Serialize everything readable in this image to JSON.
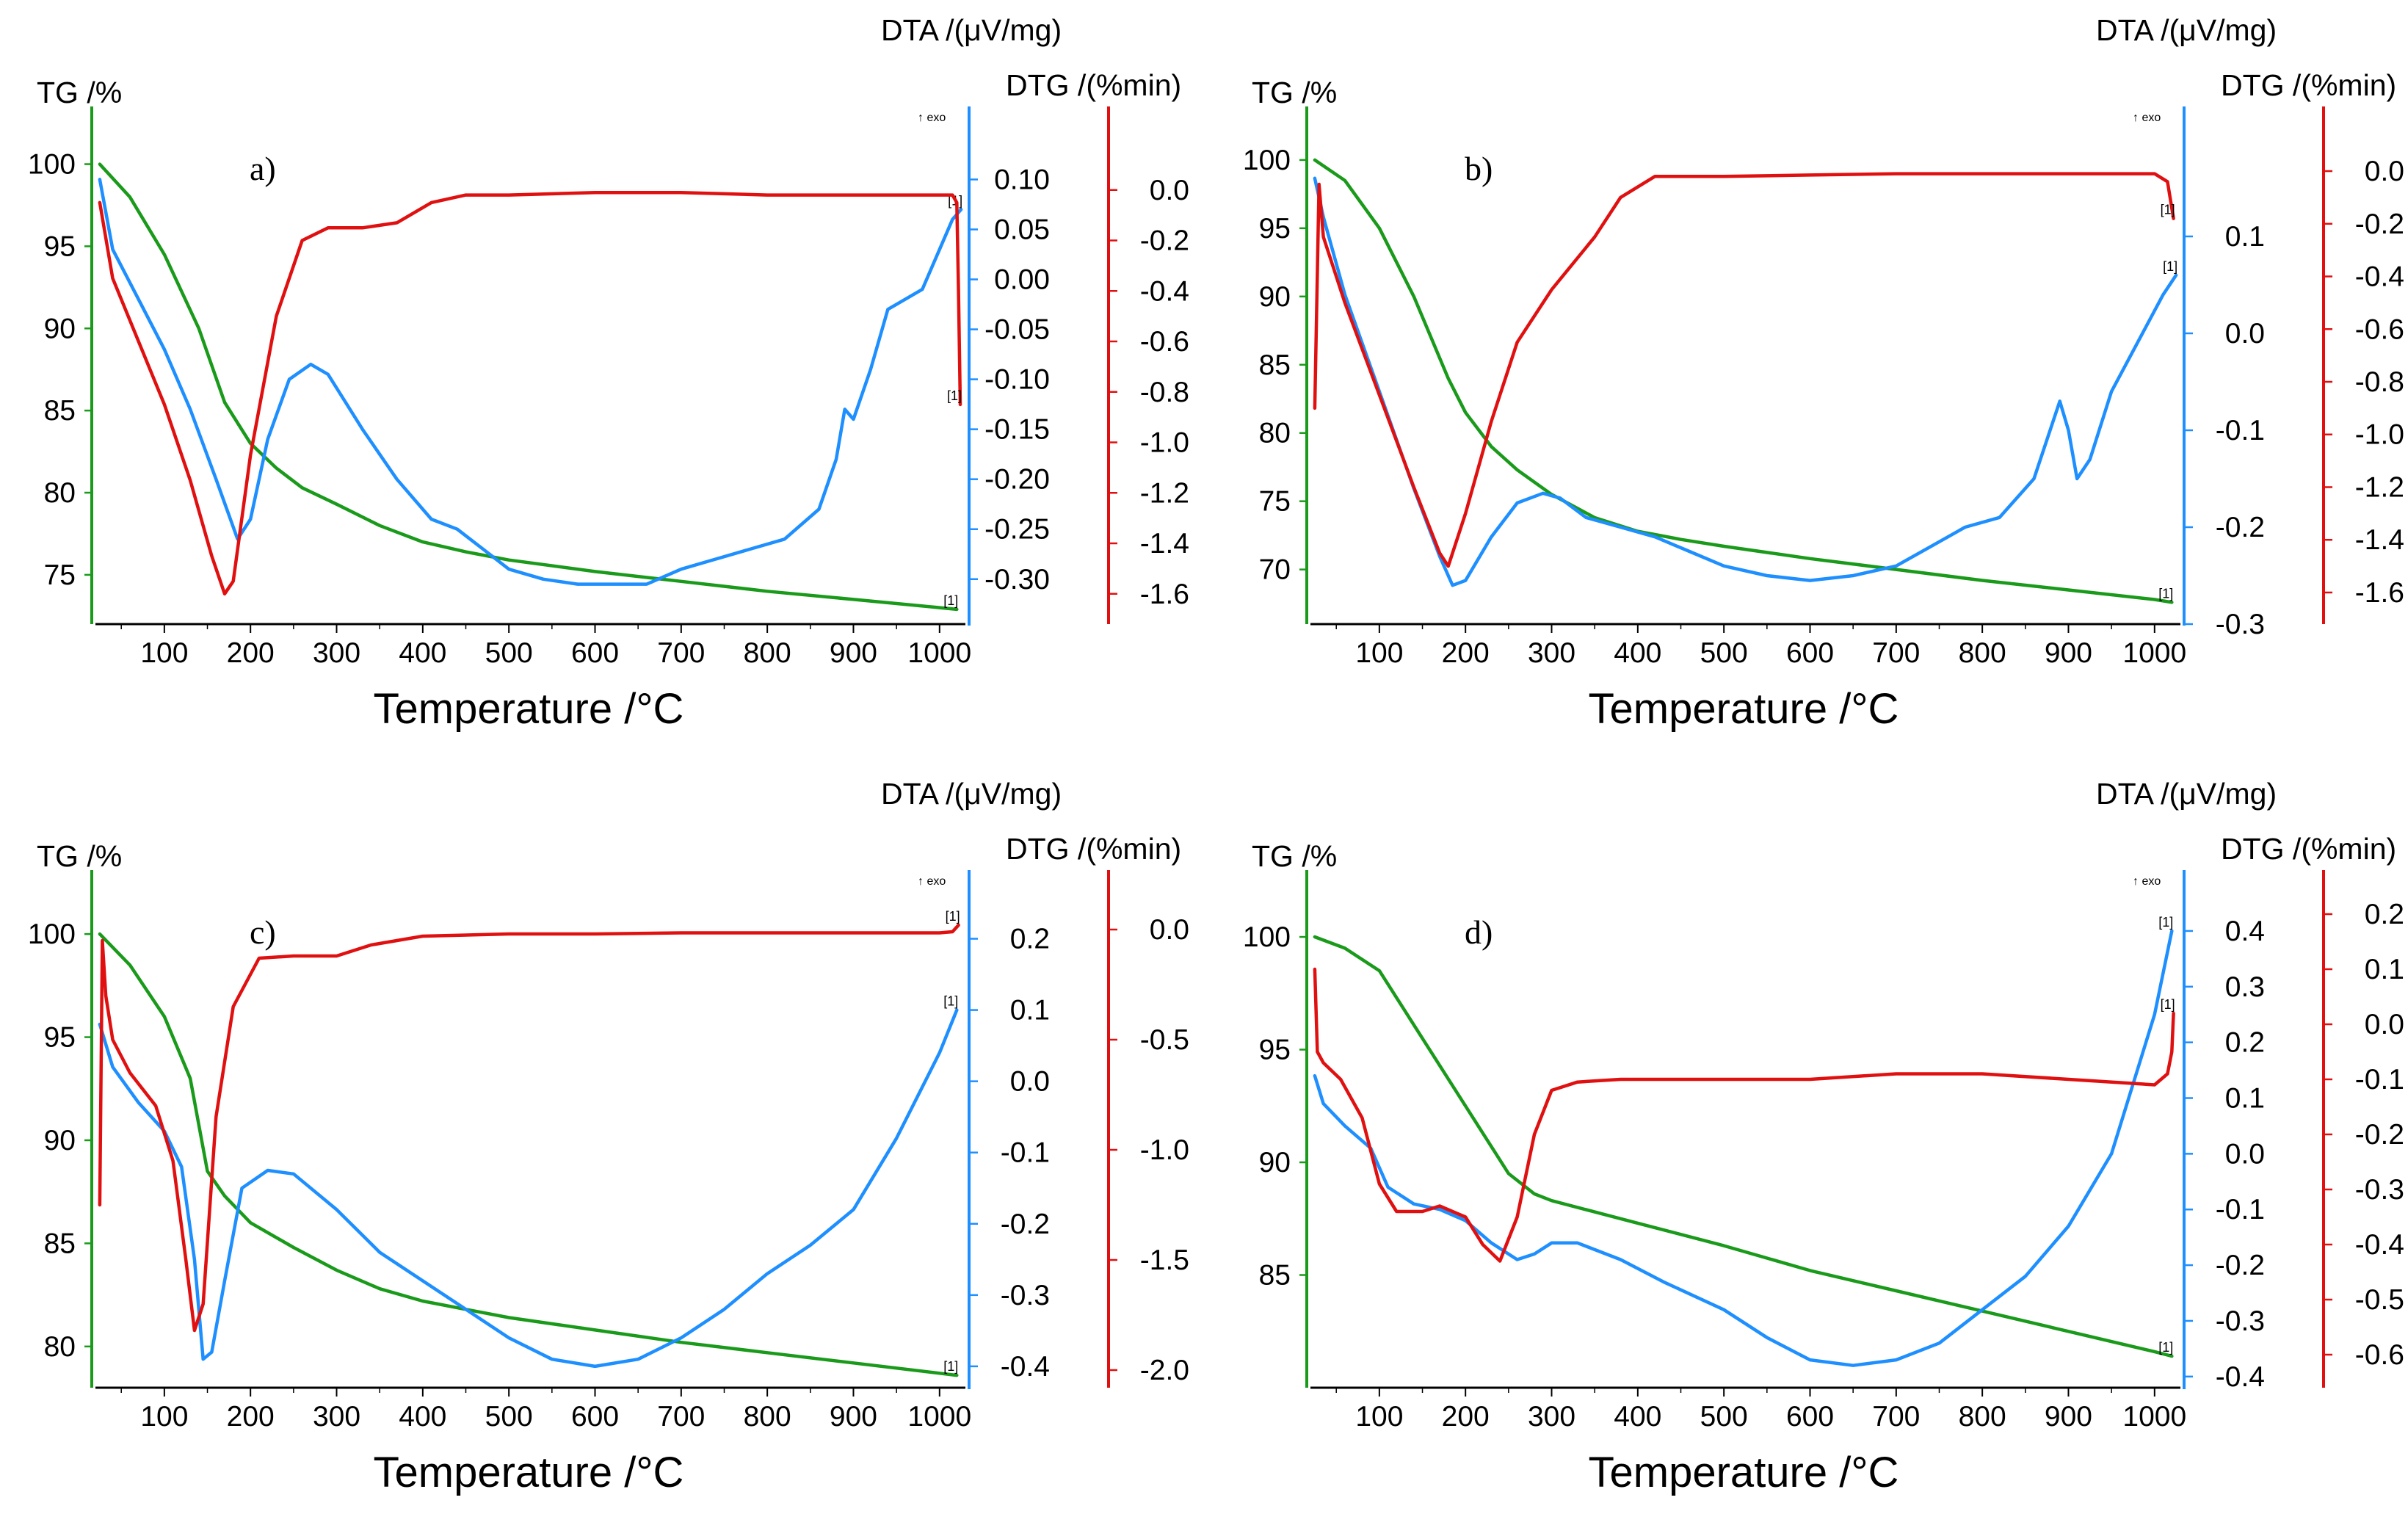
{
  "figure": {
    "legend_axis_titles": {
      "tg": "TG /%",
      "dta": "DTA /(μV/mg)",
      "dtg": "DTG /(%min)",
      "x": "Temperature /°C"
    },
    "exo_label": "↑ exo",
    "curve_marker": "[1]",
    "colors": {
      "tg": "#1a9a1a",
      "dta": "#1e8fff",
      "dtg": "#e01010",
      "tg_axis": "#1a9a1a",
      "dta_axis": "#1e8fff",
      "dtg_axis": "#e01010"
    }
  },
  "chart_data": [
    {
      "panel_label": "a)",
      "type": "line",
      "title": "",
      "xlabel": "Temperature /°C",
      "xlim": [
        20,
        1030
      ],
      "x_ticks": [
        100,
        200,
        300,
        400,
        500,
        600,
        700,
        800,
        900,
        1000
      ],
      "tg_label": "TG /%",
      "dta_label": "DTA /(μV/mg)",
      "dtg_label": "DTG /(%min)",
      "tg_lim": [
        72,
        101.5
      ],
      "tg_ticks": [
        75,
        80,
        85,
        90,
        95,
        100
      ],
      "dta_lim": [
        -0.345,
        0.14
      ],
      "dta_ticks": [
        -0.3,
        -0.25,
        -0.2,
        -0.15,
        -0.1,
        -0.05,
        0.0,
        0.05,
        0.1
      ],
      "dta_tick_labels": [
        "-0.30",
        "-0.25",
        "-0.20",
        "-0.15",
        "-0.10",
        "-0.05",
        "0.00",
        "0.05",
        "0.10"
      ],
      "dtg_lim": [
        -1.72,
        0.2
      ],
      "dtg_ticks": [
        -1.6,
        -1.4,
        -1.2,
        -1.0,
        -0.8,
        -0.6,
        -0.4,
        -0.2,
        0.0
      ],
      "dtg_tick_labels": [
        "-1.6",
        "-1.4",
        "-1.2",
        "-1.0",
        "-0.8",
        "-0.6",
        "-0.4",
        "-0.2",
        "0.0"
      ],
      "series": [
        {
          "name": "TG",
          "axis": "tg",
          "x": [
            25,
            60,
            100,
            140,
            170,
            200,
            230,
            260,
            300,
            350,
            400,
            450,
            500,
            600,
            700,
            800,
            900,
            1000,
            1020
          ],
          "y": [
            100,
            98,
            94.5,
            90,
            85.5,
            83,
            81.5,
            80.3,
            79.3,
            78,
            77,
            76.4,
            75.9,
            75.2,
            74.6,
            74,
            73.5,
            73,
            72.9
          ]
        },
        {
          "name": "DTA",
          "axis": "dta",
          "x": [
            25,
            40,
            70,
            100,
            130,
            160,
            185,
            200,
            220,
            245,
            270,
            290,
            330,
            370,
            410,
            440,
            470,
            500,
            540,
            580,
            620,
            660,
            700,
            740,
            780,
            820,
            860,
            880,
            890,
            900,
            920,
            940,
            960,
            980,
            1000,
            1015,
            1025
          ],
          "y": [
            0.1,
            0.03,
            -0.02,
            -0.07,
            -0.13,
            -0.2,
            -0.26,
            -0.24,
            -0.16,
            -0.1,
            -0.085,
            -0.095,
            -0.15,
            -0.2,
            -0.24,
            -0.25,
            -0.27,
            -0.29,
            -0.3,
            -0.305,
            -0.305,
            -0.305,
            -0.29,
            -0.28,
            -0.27,
            -0.26,
            -0.23,
            -0.18,
            -0.13,
            -0.14,
            -0.09,
            -0.03,
            -0.02,
            -0.01,
            0.03,
            0.06,
            0.07
          ]
        },
        {
          "name": "DTG",
          "axis": "dtg",
          "x": [
            25,
            40,
            70,
            100,
            130,
            155,
            170,
            180,
            200,
            230,
            260,
            290,
            330,
            370,
            410,
            450,
            500,
            600,
            700,
            800,
            900,
            1000,
            1015,
            1020,
            1022,
            1024
          ],
          "y": [
            -0.05,
            -0.35,
            -0.6,
            -0.85,
            -1.15,
            -1.45,
            -1.6,
            -1.55,
            -1.05,
            -0.5,
            -0.2,
            -0.15,
            -0.15,
            -0.13,
            -0.05,
            -0.02,
            -0.02,
            -0.01,
            -0.01,
            -0.02,
            -0.02,
            -0.02,
            -0.02,
            -0.05,
            -0.4,
            -0.85
          ]
        }
      ]
    },
    {
      "panel_label": "b)",
      "type": "line",
      "title": "",
      "xlabel": "Temperature /°C",
      "xlim": [
        20,
        1030
      ],
      "x_ticks": [
        100,
        200,
        300,
        400,
        500,
        600,
        700,
        800,
        900,
        1000
      ],
      "tg_label": "TG /%",
      "dta_label": "DTA /(μV/mg)",
      "dtg_label": "DTG /(%min)",
      "tg_lim": [
        66,
        101.5
      ],
      "tg_ticks": [
        70,
        75,
        80,
        85,
        90,
        95,
        100
      ],
      "dta_lim": [
        -0.3,
        0.2
      ],
      "dta_ticks": [
        -0.3,
        -0.2,
        -0.1,
        0.0,
        0.1
      ],
      "dta_tick_labels": [
        "-0.3",
        "-0.2",
        "-0.1",
        "0.0",
        "0.1"
      ],
      "dtg_lim": [
        -1.72,
        0.12
      ],
      "dtg_ticks": [
        -1.6,
        -1.4,
        -1.2,
        -1.0,
        -0.8,
        -0.6,
        -0.4,
        -0.2,
        0.0
      ],
      "dtg_tick_labels": [
        "-1.6",
        "-1.4",
        "-1.2",
        "-1.0",
        "-0.8",
        "-0.6",
        "-0.4",
        "-0.2",
        "0.0"
      ],
      "series": [
        {
          "name": "TG",
          "axis": "tg",
          "x": [
            25,
            60,
            100,
            140,
            180,
            200,
            230,
            260,
            300,
            350,
            400,
            450,
            500,
            600,
            700,
            800,
            900,
            1000,
            1020
          ],
          "y": [
            100,
            98.5,
            95,
            90,
            84,
            81.5,
            79,
            77.3,
            75.5,
            73.8,
            72.8,
            72.2,
            71.7,
            70.8,
            70,
            69.2,
            68.5,
            67.8,
            67.6
          ]
        },
        {
          "name": "DTA",
          "axis": "dta",
          "x": [
            25,
            35,
            60,
            100,
            140,
            170,
            185,
            200,
            230,
            260,
            290,
            310,
            340,
            380,
            420,
            460,
            500,
            550,
            600,
            650,
            700,
            740,
            780,
            820,
            860,
            875,
            890,
            900,
            910,
            925,
            950,
            980,
            1010,
            1025
          ],
          "y": [
            0.16,
            0.12,
            0.04,
            -0.06,
            -0.16,
            -0.23,
            -0.26,
            -0.255,
            -0.21,
            -0.175,
            -0.165,
            -0.17,
            -0.19,
            -0.2,
            -0.21,
            -0.225,
            -0.24,
            -0.25,
            -0.255,
            -0.25,
            -0.24,
            -0.22,
            -0.2,
            -0.19,
            -0.15,
            -0.11,
            -0.07,
            -0.1,
            -0.15,
            -0.13,
            -0.06,
            -0.01,
            0.04,
            0.06
          ]
        },
        {
          "name": "DTG",
          "axis": "dtg",
          "x": [
            25,
            30,
            35,
            60,
            100,
            140,
            170,
            180,
            200,
            230,
            260,
            300,
            350,
            380,
            420,
            500,
            600,
            700,
            800,
            900,
            1000,
            1015,
            1022
          ],
          "y": [
            -0.9,
            -0.05,
            -0.25,
            -0.5,
            -0.85,
            -1.2,
            -1.45,
            -1.5,
            -1.3,
            -0.95,
            -0.65,
            -0.45,
            -0.25,
            -0.1,
            -0.02,
            -0.02,
            -0.015,
            -0.01,
            -0.01,
            -0.01,
            -0.01,
            -0.04,
            -0.18
          ]
        }
      ]
    },
    {
      "panel_label": "c)",
      "type": "line",
      "title": "",
      "xlabel": "Temperature /°C",
      "xlim": [
        20,
        1030
      ],
      "x_ticks": [
        100,
        200,
        300,
        400,
        500,
        600,
        700,
        800,
        900,
        1000
      ],
      "tg_label": "TG /%",
      "dta_label": "DTA /(μV/mg)",
      "dtg_label": "DTG /(%min)",
      "tg_lim": [
        78,
        101.5
      ],
      "tg_ticks": [
        80,
        85,
        90,
        95,
        100
      ],
      "dta_lim": [
        -0.43,
        0.25
      ],
      "dta_ticks": [
        -0.4,
        -0.3,
        -0.2,
        -0.1,
        0.0,
        0.1,
        0.2
      ],
      "dta_tick_labels": [
        "-0.4",
        "-0.3",
        "-0.2",
        "-0.1",
        "0.0",
        "0.1",
        "0.2"
      ],
      "dtg_lim": [
        -2.08,
        0.12
      ],
      "dtg_ticks": [
        -2.0,
        -1.5,
        -1.0,
        -0.5,
        0.0
      ],
      "dtg_tick_labels": [
        "-2.0",
        "-1.5",
        "-1.0",
        "-0.5",
        "0.0"
      ],
      "series": [
        {
          "name": "TG",
          "axis": "tg",
          "x": [
            25,
            60,
            100,
            130,
            150,
            170,
            200,
            250,
            300,
            350,
            400,
            450,
            500,
            600,
            700,
            800,
            900,
            1000,
            1020
          ],
          "y": [
            100,
            98.5,
            96,
            93,
            88.5,
            87.3,
            86,
            84.8,
            83.7,
            82.8,
            82.2,
            81.8,
            81.4,
            80.8,
            80.2,
            79.7,
            79.2,
            78.7,
            78.6
          ]
        },
        {
          "name": "DTA",
          "axis": "dta",
          "x": [
            25,
            40,
            70,
            100,
            120,
            135,
            145,
            155,
            170,
            190,
            220,
            250,
            300,
            350,
            400,
            450,
            500,
            550,
            600,
            650,
            700,
            750,
            800,
            850,
            900,
            950,
            1000,
            1020
          ],
          "y": [
            0.08,
            0.02,
            -0.03,
            -0.07,
            -0.12,
            -0.25,
            -0.39,
            -0.38,
            -0.28,
            -0.15,
            -0.125,
            -0.13,
            -0.18,
            -0.24,
            -0.28,
            -0.32,
            -0.36,
            -0.39,
            -0.4,
            -0.39,
            -0.36,
            -0.32,
            -0.27,
            -0.23,
            -0.18,
            -0.08,
            0.04,
            0.1
          ]
        },
        {
          "name": "DTG",
          "axis": "dtg",
          "x": [
            25,
            28,
            32,
            40,
            60,
            90,
            110,
            125,
            135,
            145,
            160,
            180,
            210,
            250,
            280,
            300,
            340,
            400,
            500,
            600,
            700,
            800,
            900,
            1000,
            1015,
            1022
          ],
          "y": [
            -1.25,
            -0.05,
            -0.3,
            -0.5,
            -0.65,
            -0.8,
            -1.05,
            -1.5,
            -1.82,
            -1.7,
            -0.85,
            -0.35,
            -0.13,
            -0.12,
            -0.12,
            -0.12,
            -0.07,
            -0.03,
            -0.02,
            -0.02,
            -0.015,
            -0.015,
            -0.015,
            -0.015,
            -0.01,
            0.02
          ]
        }
      ]
    },
    {
      "panel_label": "d)",
      "type": "line",
      "title": "",
      "xlabel": "Temperature /°C",
      "xlim": [
        20,
        1030
      ],
      "x_ticks": [
        100,
        200,
        300,
        400,
        500,
        600,
        700,
        800,
        900,
        1000
      ],
      "tg_label": "TG /%",
      "dta_label": "DTA /(μV/mg)",
      "dtg_label": "DTG /(%min)",
      "tg_lim": [
        80,
        101.5
      ],
      "tg_ticks": [
        85,
        90,
        95,
        100
      ],
      "dta_lim": [
        -0.42,
        0.45
      ],
      "dta_ticks": [
        -0.4,
        -0.3,
        -0.2,
        -0.1,
        0.0,
        0.1,
        0.2,
        0.3,
        0.4
      ],
      "dta_tick_labels": [
        "-0.4",
        "-0.3",
        "-0.2",
        "-0.1",
        "0.0",
        "0.1",
        "0.2",
        "0.3",
        "0.4"
      ],
      "dtg_lim": [
        -0.66,
        0.22
      ],
      "dtg_ticks": [
        -0.6,
        -0.5,
        -0.4,
        -0.3,
        -0.2,
        -0.1,
        0.0,
        0.1,
        0.2
      ],
      "dtg_tick_labels": [
        "-0.6",
        "-0.5",
        "-0.4",
        "-0.3",
        "-0.2",
        "-0.1",
        "0.0",
        "0.1",
        "0.2"
      ],
      "series": [
        {
          "name": "TG",
          "axis": "tg",
          "x": [
            25,
            60,
            100,
            150,
            200,
            250,
            280,
            300,
            350,
            400,
            500,
            600,
            700,
            800,
            900,
            1000,
            1020
          ],
          "y": [
            100,
            99.5,
            98.5,
            95.5,
            92.5,
            89.5,
            88.6,
            88.3,
            87.8,
            87.3,
            86.3,
            85.2,
            84.3,
            83.4,
            82.5,
            81.6,
            81.4
          ]
        },
        {
          "name": "DTA",
          "axis": "dta",
          "x": [
            25,
            35,
            60,
            90,
            110,
            140,
            170,
            200,
            230,
            260,
            280,
            300,
            330,
            380,
            430,
            500,
            550,
            600,
            650,
            700,
            750,
            800,
            850,
            900,
            950,
            1000,
            1020
          ],
          "y": [
            0.14,
            0.09,
            0.05,
            0.01,
            -0.06,
            -0.09,
            -0.1,
            -0.12,
            -0.16,
            -0.19,
            -0.18,
            -0.16,
            -0.16,
            -0.19,
            -0.23,
            -0.28,
            -0.33,
            -0.37,
            -0.38,
            -0.37,
            -0.34,
            -0.28,
            -0.22,
            -0.13,
            0.0,
            0.25,
            0.4
          ]
        },
        {
          "name": "DTG",
          "axis": "dtg",
          "x": [
            25,
            28,
            35,
            55,
            80,
            100,
            120,
            150,
            170,
            200,
            220,
            240,
            260,
            280,
            300,
            330,
            380,
            450,
            500,
            550,
            600,
            700,
            800,
            900,
            1000,
            1015,
            1020,
            1022
          ],
          "y": [
            0.1,
            -0.05,
            -0.07,
            -0.1,
            -0.17,
            -0.29,
            -0.34,
            -0.34,
            -0.33,
            -0.35,
            -0.4,
            -0.43,
            -0.35,
            -0.2,
            -0.12,
            -0.105,
            -0.1,
            -0.1,
            -0.1,
            -0.1,
            -0.1,
            -0.09,
            -0.09,
            -0.1,
            -0.11,
            -0.09,
            -0.05,
            0.02
          ]
        }
      ]
    }
  ]
}
